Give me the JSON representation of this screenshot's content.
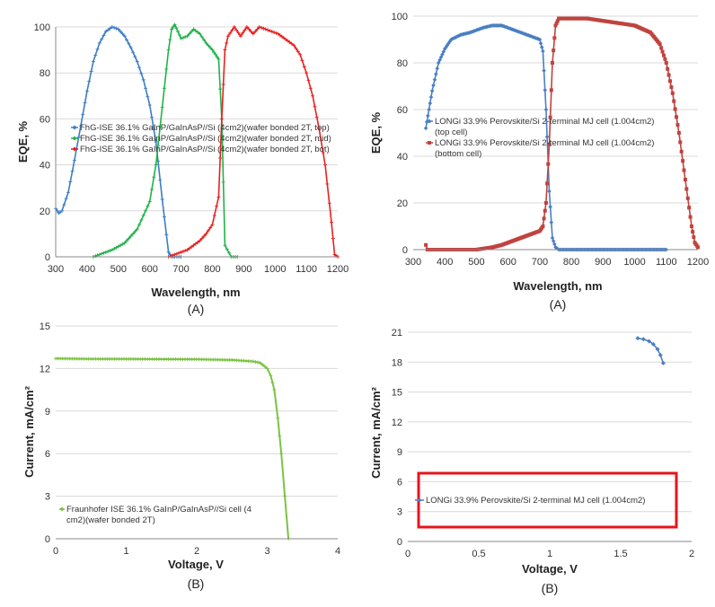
{
  "colors": {
    "blue": "#3c7ec6",
    "green": "#21b24a",
    "red": "#e8211f",
    "lgreen": "#7cc243",
    "mblue": "#4a7fc4",
    "mred": "#c0433f",
    "highlight": "#e8141c",
    "grid": "#d9d9d9",
    "axis": "#888888"
  },
  "chart_data": [
    {
      "id": "fhg-eqe",
      "type": "line",
      "caption": "(A)",
      "xlabel": "Wavelength, nm",
      "ylabel": "EQE, %",
      "xlim": [
        300,
        1200
      ],
      "ylim": [
        0,
        100
      ],
      "xticks": [
        300,
        400,
        500,
        600,
        700,
        800,
        900,
        1000,
        1100,
        1200
      ],
      "yticks": [
        0,
        20,
        40,
        60,
        80,
        100
      ],
      "grid": "horizontal",
      "legend_position": "middle-left",
      "series": [
        {
          "name": "FhG-ISE 36.1% GaInP/GaInAsP//Si (4cm2)(wafer bonded 2T, top)",
          "color": "blue",
          "x": [
            300,
            310,
            320,
            340,
            360,
            380,
            400,
            420,
            440,
            460,
            480,
            500,
            520,
            540,
            560,
            580,
            600,
            620,
            640,
            660,
            670,
            680,
            700
          ],
          "y": [
            21,
            19,
            20,
            28,
            42,
            57,
            72,
            85,
            93,
            98,
            100,
            99,
            96,
            91,
            85,
            77,
            66,
            50,
            25,
            2,
            0,
            0,
            0
          ]
        },
        {
          "name": "FhG-ISE 36.1% GaInP/GaInAsP//Si (4cm2)(wafer bonded 2T, mid)",
          "color": "green",
          "x": [
            420,
            440,
            480,
            520,
            560,
            600,
            620,
            640,
            660,
            670,
            680,
            690,
            700,
            720,
            740,
            760,
            780,
            800,
            810,
            820,
            830,
            840,
            860,
            880
          ],
          "y": [
            0,
            1,
            3,
            6,
            12,
            24,
            40,
            65,
            90,
            99,
            101,
            98,
            95,
            96,
            99,
            97,
            93,
            90,
            88,
            86,
            60,
            5,
            0,
            0
          ]
        },
        {
          "name": "FhG-ISE 36.1% GaInP/GaInAsP//Si (4cm2)(wafer bonded 2T, bot)",
          "color": "red",
          "x": [
            660,
            680,
            700,
            720,
            740,
            760,
            780,
            800,
            820,
            830,
            840,
            850,
            870,
            890,
            910,
            930,
            950,
            970,
            990,
            1010,
            1040,
            1060,
            1080,
            1100,
            1120,
            1140,
            1160,
            1180,
            1190,
            1200
          ],
          "y": [
            0,
            1,
            2,
            3,
            5,
            7,
            10,
            14,
            26,
            60,
            90,
            96,
            100,
            96,
            100,
            97,
            100,
            99,
            98,
            97,
            94,
            92,
            88,
            80,
            70,
            56,
            40,
            15,
            1,
            0
          ]
        }
      ]
    },
    {
      "id": "longi-eqe",
      "type": "line",
      "caption": "(A)",
      "xlabel": "Wavelength, nm",
      "ylabel": "EQE, %",
      "xlim": [
        300,
        1200
      ],
      "ylim": [
        0,
        100
      ],
      "xticks": [
        300,
        400,
        500,
        600,
        700,
        800,
        900,
        1000,
        1100,
        1200
      ],
      "yticks": [
        0,
        20,
        40,
        60,
        80,
        100
      ],
      "grid": "horizontal",
      "legend_position": "middle-left",
      "series": [
        {
          "name": "LONGi 33.9% Perovskite/Si 2-terminal MJ cell (1.004cm2) (top cell)",
          "color": "mblue",
          "x": [
            340,
            350,
            360,
            380,
            400,
            420,
            450,
            480,
            500,
            520,
            550,
            580,
            600,
            620,
            640,
            660,
            680,
            700,
            710,
            720,
            730,
            740,
            750,
            760,
            780,
            800,
            900,
            1000,
            1100
          ],
          "y": [
            52,
            60,
            68,
            80,
            86,
            90,
            92,
            93,
            94,
            95,
            96,
            96,
            95,
            94,
            93,
            92,
            91,
            90,
            85,
            60,
            25,
            5,
            1,
            0,
            0,
            0,
            0,
            0,
            0
          ]
        },
        {
          "name": "LONGi 33.9% Perovskite/Si 2-terminal MJ cell (1.004cm2) (bottom cell)",
          "color": "mred",
          "x": [
            340,
            345,
            350,
            400,
            450,
            500,
            550,
            580,
            600,
            620,
            640,
            660,
            680,
            700,
            710,
            720,
            730,
            740,
            750,
            760,
            800,
            850,
            900,
            950,
            1000,
            1050,
            1080,
            1100,
            1120,
            1140,
            1160,
            1180,
            1190,
            1200
          ],
          "y": [
            2,
            0,
            0,
            0,
            0,
            0,
            1,
            2,
            3,
            4,
            5,
            6,
            7,
            8,
            10,
            20,
            45,
            80,
            96,
            99,
            99,
            99,
            98,
            97,
            96,
            93,
            88,
            80,
            67,
            50,
            30,
            10,
            3,
            1
          ]
        }
      ]
    },
    {
      "id": "fhg-iv",
      "type": "line",
      "caption": "(B)",
      "xlabel": "Voltage, V",
      "ylabel": "Current, mA/cm²",
      "xlim": [
        0,
        4
      ],
      "ylim": [
        0,
        15
      ],
      "xticks": [
        0,
        1,
        2,
        3,
        4
      ],
      "yticks": [
        0,
        3,
        6,
        9,
        12,
        15
      ],
      "grid": "horizontal",
      "legend_position": "bottom-left",
      "series": [
        {
          "name": "Fraunhofer ISE 36.1% GaInP/GaInAsP//Si cell (4 cm2)(wafer bonded 2T)",
          "color": "lgreen",
          "x": [
            0,
            0.5,
            1,
            1.5,
            2,
            2.5,
            2.8,
            2.9,
            3.0,
            3.05,
            3.1,
            3.15,
            3.2,
            3.25,
            3.3
          ],
          "y": [
            12.7,
            12.68,
            12.67,
            12.66,
            12.65,
            12.6,
            12.5,
            12.4,
            12.0,
            11.5,
            10.5,
            8.5,
            6.0,
            3.0,
            0
          ]
        }
      ]
    },
    {
      "id": "longi-iv",
      "type": "line",
      "caption": "(B)",
      "xlabel": "Voltage, V",
      "ylabel": "Current, mA/cm²",
      "xlim": [
        0,
        2
      ],
      "ylim": [
        0,
        21
      ],
      "xticks": [
        0,
        0.5,
        1,
        1.5,
        2
      ],
      "yticks": [
        0,
        3,
        6,
        9,
        12,
        15,
        18,
        21
      ],
      "grid": "horizontal",
      "legend_position": "bottom",
      "series": [
        {
          "name": "LONGi 33.9% Perovskite/Si 2-terminal MJ cell (1.004cm2)",
          "color": "mblue",
          "x": [
            1.62,
            1.66,
            1.7,
            1.73,
            1.76,
            1.78,
            1.8
          ],
          "y": [
            20.4,
            20.3,
            20.1,
            19.8,
            19.3,
            18.7,
            17.9
          ]
        }
      ]
    }
  ]
}
